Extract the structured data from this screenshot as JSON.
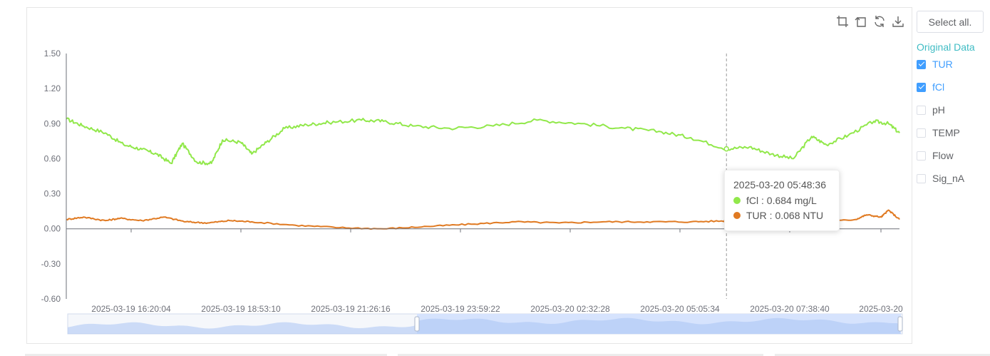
{
  "toolbox": {
    "icons": [
      "zoom-select-icon",
      "zoom-reset-icon",
      "restore-icon",
      "download-icon"
    ]
  },
  "sidebar": {
    "select_all_label": "Select all.",
    "title": "Original Data",
    "options": [
      {
        "label": "TUR",
        "checked": true
      },
      {
        "label": "fCl",
        "checked": true
      },
      {
        "label": "pH",
        "checked": false
      },
      {
        "label": "TEMP",
        "checked": false
      },
      {
        "label": "Flow",
        "checked": false
      },
      {
        "label": "Sig_nA",
        "checked": false
      }
    ]
  },
  "tooltip": {
    "time": "2025-03-20 05:48:36",
    "fcl_text": "fCl : 0.684 mg/L",
    "tur_text": "TUR : 0.068 NTU"
  },
  "chart_data": {
    "type": "line",
    "ylim": [
      -0.6,
      1.5
    ],
    "yticks": [
      "1.50",
      "1.20",
      "0.90",
      "0.60",
      "0.30",
      "0.00",
      "-0.30",
      "-0.60"
    ],
    "xticks": [
      "2025-03-19 16:20:04",
      "2025-03-19 18:53:10",
      "2025-03-19 21:26:16",
      "2025-03-19 23:59:22",
      "2025-03-20 02:32:28",
      "2025-03-20 05:05:34",
      "2025-03-20 07:38:40",
      "2025-03-20"
    ],
    "xrange": [
      "2025-03-19 14:46:40",
      "2025-03-20 09:45:00"
    ],
    "cursor_time": "2025-03-20 05:48:36",
    "colors": {
      "fCl": "#91e84a",
      "TUR": "#e07a22"
    },
    "series": [
      {
        "name": "fCl",
        "x": [
          "2025-03-19 14:46:40",
          "2025-03-19 15:10:00",
          "2025-03-19 15:40:00",
          "2025-03-19 16:05:00",
          "2025-03-19 16:30:00",
          "2025-03-19 16:50:00",
          "2025-03-19 17:10:00",
          "2025-03-19 17:25:00",
          "2025-03-19 17:45:00",
          "2025-03-19 18:05:00",
          "2025-03-19 18:20:00",
          "2025-03-19 18:45:00",
          "2025-03-19 19:00:00",
          "2025-03-19 19:20:00",
          "2025-03-19 19:45:00",
          "2025-03-19 20:15:00",
          "2025-03-19 20:45:00",
          "2025-03-19 21:30:00",
          "2025-03-19 22:00:00",
          "2025-03-19 22:40:00",
          "2025-03-19 23:30:00",
          "2025-03-20 00:30:00",
          "2025-03-20 01:30:00",
          "2025-03-20 02:30:00",
          "2025-03-20 03:30:00",
          "2025-03-20 04:20:00",
          "2025-03-20 05:00:00",
          "2025-03-20 05:48:36",
          "2025-03-20 06:20:00",
          "2025-03-20 06:50:00",
          "2025-03-20 07:20:00",
          "2025-03-20 07:45:00",
          "2025-03-20 08:05:00",
          "2025-03-20 08:35:00",
          "2025-03-20 09:10:00",
          "2025-03-20 09:30:00",
          "2025-03-20 09:45:00"
        ],
        "y": [
          0.94,
          0.88,
          0.82,
          0.72,
          0.68,
          0.64,
          0.56,
          0.73,
          0.57,
          0.56,
          0.76,
          0.74,
          0.64,
          0.74,
          0.86,
          0.89,
          0.91,
          0.93,
          0.92,
          0.88,
          0.86,
          0.88,
          0.93,
          0.9,
          0.86,
          0.83,
          0.78,
          0.684,
          0.7,
          0.64,
          0.6,
          0.79,
          0.72,
          0.8,
          0.92,
          0.9,
          0.82
        ]
      },
      {
        "name": "TUR",
        "x": [
          "2025-03-19 14:46:40",
          "2025-03-19 15:10:00",
          "2025-03-19 15:40:00",
          "2025-03-19 16:00:00",
          "2025-03-19 16:30:00",
          "2025-03-19 17:00:00",
          "2025-03-19 17:30:00",
          "2025-03-19 18:00:00",
          "2025-03-19 18:30:00",
          "2025-03-19 19:00:00",
          "2025-03-19 20:00:00",
          "2025-03-19 21:00:00",
          "2025-03-19 22:00:00",
          "2025-03-19 23:00:00",
          "2025-03-20 00:00:00",
          "2025-03-20 01:00:00",
          "2025-03-20 02:00:00",
          "2025-03-20 03:00:00",
          "2025-03-20 04:00:00",
          "2025-03-20 05:00:00",
          "2025-03-20 05:48:36",
          "2025-03-20 07:00:00",
          "2025-03-20 08:00:00",
          "2025-03-20 08:45:00",
          "2025-03-20 09:00:00",
          "2025-03-20 09:20:00",
          "2025-03-20 09:30:00",
          "2025-03-20 09:45:00"
        ],
        "y": [
          0.08,
          0.1,
          0.07,
          0.09,
          0.07,
          0.1,
          0.06,
          0.05,
          0.07,
          0.06,
          0.03,
          0.01,
          0.0,
          0.02,
          0.04,
          0.06,
          0.05,
          0.06,
          0.06,
          0.06,
          0.068,
          0.05,
          0.06,
          0.08,
          0.12,
          0.1,
          0.16,
          0.08
        ]
      }
    ]
  }
}
